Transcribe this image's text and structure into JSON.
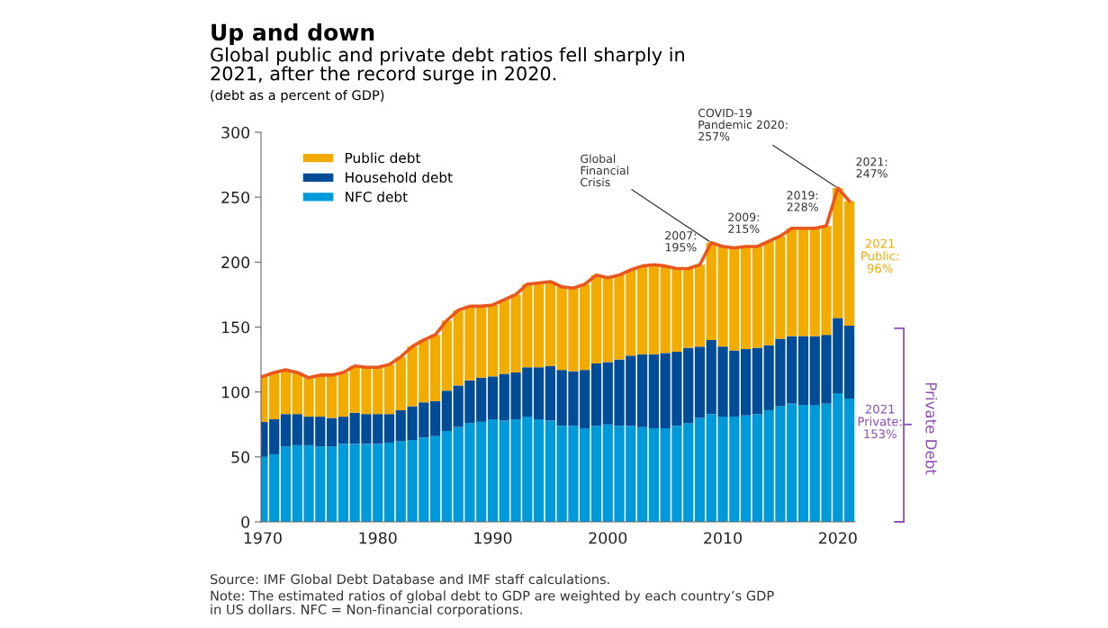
{
  "chart_data": {
    "type": "bar",
    "stacked": true,
    "title": "Up and down",
    "subtitle": "Global public and private debt ratios fell sharply in\n2021, after the record surge in 2020.",
    "ylabel": "(debt as a percent of GDP)",
    "x": [
      1970,
      1971,
      1972,
      1973,
      1974,
      1975,
      1976,
      1977,
      1978,
      1979,
      1980,
      1981,
      1982,
      1983,
      1984,
      1985,
      1986,
      1987,
      1988,
      1989,
      1990,
      1991,
      1992,
      1993,
      1994,
      1995,
      1996,
      1997,
      1998,
      1999,
      2000,
      2001,
      2002,
      2003,
      2004,
      2005,
      2006,
      2007,
      2008,
      2009,
      2010,
      2011,
      2012,
      2013,
      2014,
      2015,
      2016,
      2017,
      2018,
      2019,
      2020,
      2021
    ],
    "series": [
      {
        "name": "NFC debt",
        "color": "#009ada",
        "values": [
          50,
          52,
          58,
          59,
          59,
          58,
          58,
          60,
          60,
          60,
          60,
          61,
          62,
          63,
          65,
          66,
          70,
          73,
          76,
          77,
          79,
          78,
          79,
          81,
          79,
          78,
          74,
          74,
          72,
          74,
          75,
          74,
          74,
          73,
          72,
          72,
          74,
          76,
          80,
          83,
          81,
          81,
          82,
          83,
          86,
          89,
          91,
          90,
          90,
          91,
          99,
          95
        ]
      },
      {
        "name": "Household debt",
        "color": "#004c97",
        "values": [
          27,
          27,
          25,
          24,
          22,
          23,
          22,
          21,
          24,
          23,
          23,
          22,
          24,
          26,
          27,
          27,
          31,
          32,
          33,
          34,
          33,
          36,
          36,
          38,
          40,
          42,
          43,
          42,
          45,
          48,
          48,
          51,
          54,
          56,
          57,
          58,
          57,
          58,
          55,
          57,
          54,
          51,
          51,
          51,
          50,
          52,
          52,
          53,
          53,
          53,
          58,
          56
        ]
      },
      {
        "name": "Public debt",
        "color": "#f2ab00",
        "values": [
          35,
          36,
          34,
          32,
          30,
          32,
          33,
          34,
          36,
          36,
          36,
          38,
          41,
          46,
          48,
          51,
          54,
          58,
          57,
          55,
          55,
          57,
          60,
          64,
          65,
          65,
          64,
          64,
          66,
          68,
          65,
          65,
          66,
          68,
          69,
          67,
          64,
          61,
          63,
          75,
          77,
          79,
          79,
          78,
          80,
          79,
          83,
          83,
          83,
          84,
          100,
          96
        ]
      },
      {
        "type": "line",
        "color": "#e8571e",
        "values": [
          112,
          115,
          117,
          115,
          111,
          113,
          113,
          115,
          120,
          119,
          119,
          121,
          127,
          135,
          140,
          144,
          155,
          163,
          166,
          166,
          167,
          171,
          175,
          183,
          184,
          185,
          181,
          180,
          183,
          190,
          188,
          190,
          194,
          197,
          198,
          197,
          195,
          195,
          198,
          215,
          212,
          211,
          212,
          212,
          216,
          220,
          226,
          226,
          226,
          228,
          257,
          247
        ]
      }
    ],
    "xlim": [
      1969.85,
      2021.5
    ],
    "xticks": [
      1970,
      1980,
      1990,
      2000,
      2010,
      2020
    ],
    "ylim": [
      0,
      300
    ],
    "yticks": [
      0,
      50,
      100,
      150,
      200,
      250,
      300
    ],
    "grid": false,
    "legend": "top left",
    "annotations": [
      {
        "text": "2007:\n195%",
        "x": 2007,
        "y": 195
      },
      {
        "text": "Global\nFinancial\nCrisis",
        "x": 2009,
        "y": 215
      },
      {
        "text": "2009:\n215%",
        "x": 2009,
        "y": 215
      },
      {
        "text": "2019:\n228%",
        "x": 2019,
        "y": 228
      },
      {
        "text": "COVID-19\nPandemic 2020:\n257%",
        "x": 2020,
        "y": 257
      },
      {
        "text": "2021:\n247%",
        "x": 2021,
        "y": 247
      },
      "2021\nPublic:\n96%",
      "2021\nPrivate:\n153%",
      "Private Debt",
      "Source: IMF Global Debt Database and IMF staff calculations.",
      "Note: The estimated ratios of global debt to GDP are weighted by each country’s GDP\nin US dollars. NFC = Non-financial corporations."
    ]
  }
}
